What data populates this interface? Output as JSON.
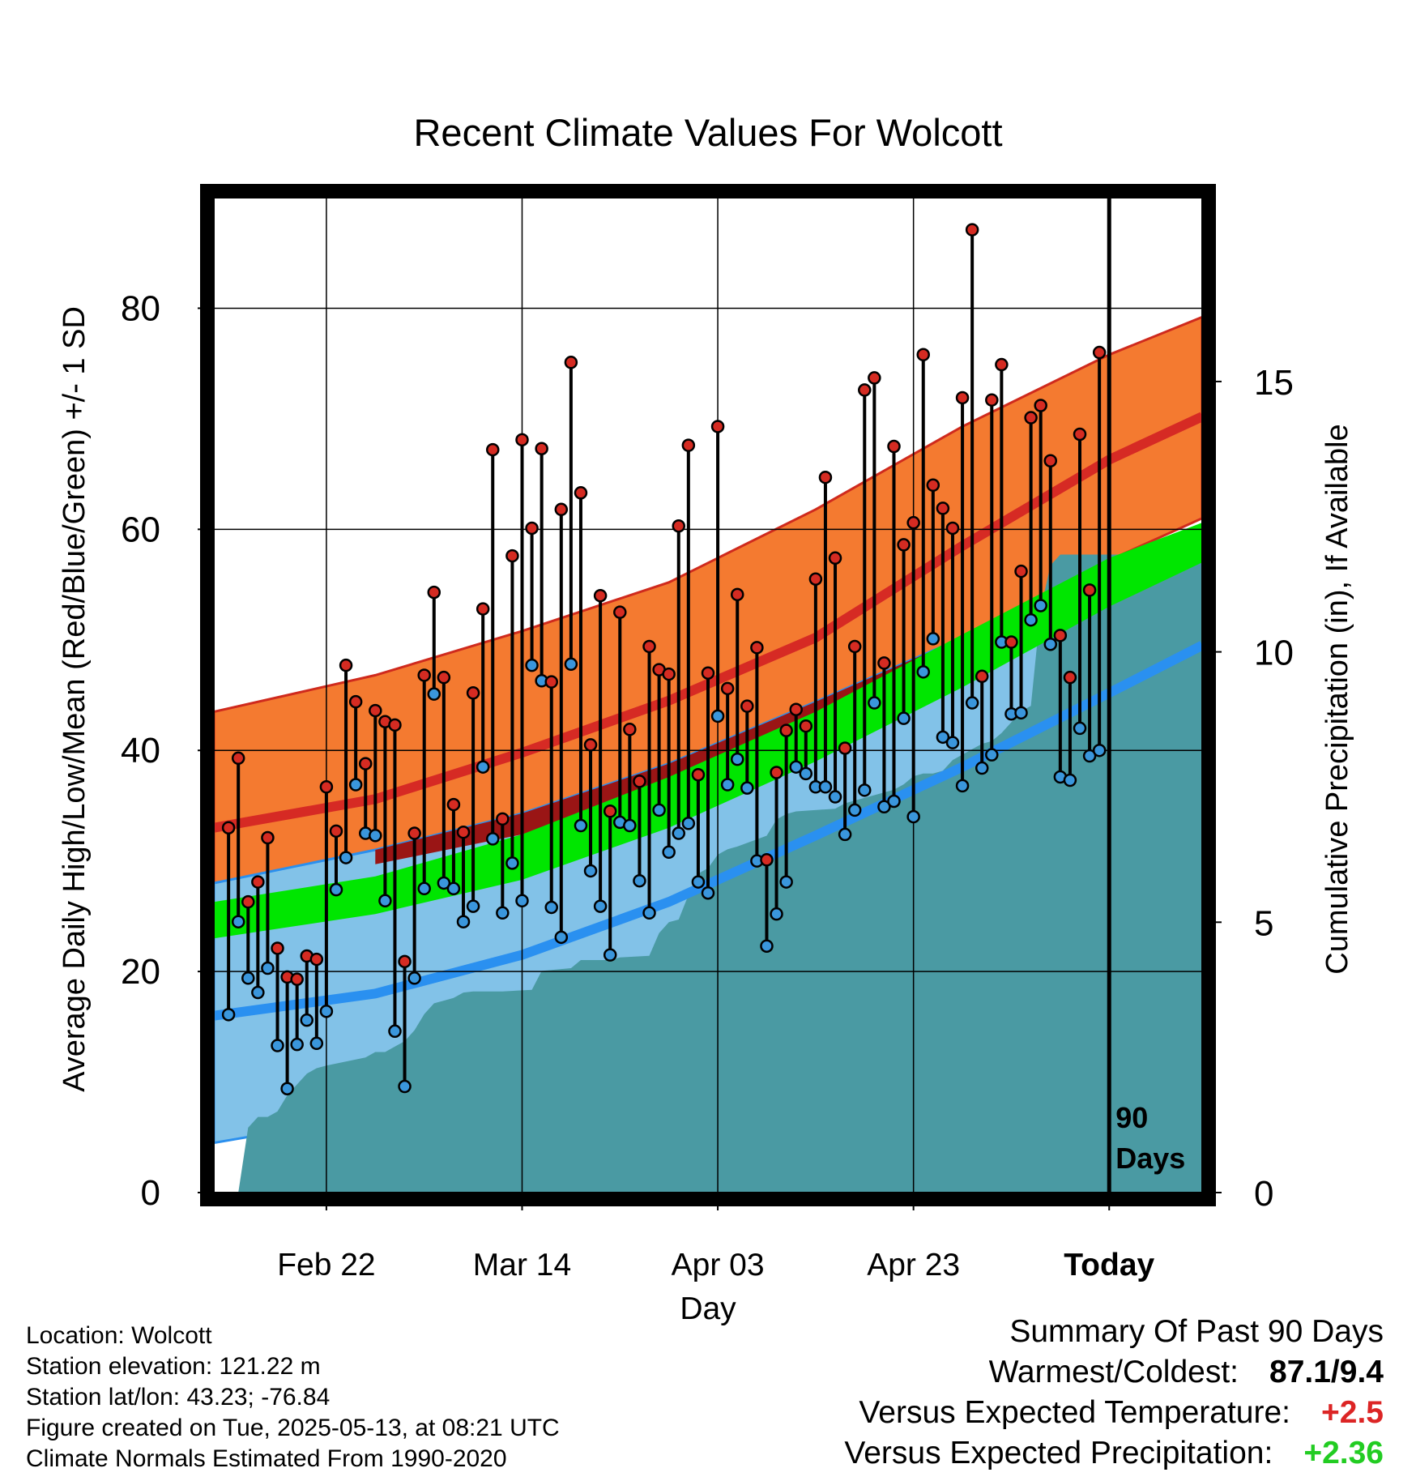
{
  "page": {
    "title": "Recent Climate Values For Wolcott",
    "footer_left": [
      "Location: Wolcott",
      "Station elevation: 121.22 m",
      "Station lat/lon: 43.23; -76.84",
      "Figure created on Tue, 2025-05-13, at 08:21 UTC",
      "Climate Normals Estimated From 1990-2020"
    ],
    "summary": {
      "heading": "Summary Of Past 90 Days",
      "warmest_label": "Warmest/Coldest:",
      "warmest_value": "87.1/9.4",
      "temp_label": "Versus Expected Temperature:",
      "temp_value": "+2.5",
      "precip_label": "Versus Expected Precipitation:",
      "precip_value": "+2.36"
    },
    "colors": {
      "high_band": "#f47a30",
      "high_mean": "#d62a24",
      "low_band": "#82c2e8",
      "low_mean": "#2a90f0",
      "mean_temp": "#00e600",
      "overlap_band": "#9a1515",
      "precip": "#4a9aa3",
      "temp_plus": "#dc2525",
      "precip_plus": "#22cc22"
    }
  },
  "chart_data": {
    "type": "line",
    "title": "Recent Climate Values For Wolcott",
    "xlabel": "Day",
    "ylabel": "Average Daily High/Low/Mean (Red/Blue/Green) +/- 1 SD",
    "y2label": "Cumulative Precipitation (in), If Available",
    "x_tick_labels": [
      "Feb 22",
      "Mar 14",
      "Apr 03",
      "Apr 23",
      "Today"
    ],
    "x_tick_days": [
      -80,
      -60,
      -40,
      -20,
      0
    ],
    "xlim": [
      -91.5,
      9.5
    ],
    "ylim": [
      0,
      90
    ],
    "y_ticks": [
      0,
      20,
      40,
      60,
      80
    ],
    "y2lim": [
      0,
      18.4
    ],
    "y2_ticks": [
      0,
      5,
      10,
      15
    ],
    "today_marker_label": [
      "90",
      "Days"
    ],
    "normals": {
      "days": [
        -91.5,
        -75,
        -60,
        -45,
        -30,
        -15,
        0,
        9.5
      ],
      "high_mean": [
        33,
        35.6,
        39.8,
        44.5,
        50.2,
        58.5,
        66.3,
        70.2
      ],
      "high_sd_upper": [
        43.5,
        46.8,
        50.8,
        55.2,
        61.8,
        69.3,
        75.8,
        79.2
      ],
      "high_sd_lower": [
        28,
        29.7,
        32.4,
        36,
        42.5,
        50,
        57.2,
        61
      ],
      "low_mean": [
        16,
        18,
        21.5,
        26.3,
        32.3,
        38.5,
        45.2,
        49.5
      ],
      "low_sd_upper": [
        28,
        31,
        34.3,
        38.8,
        44.4,
        50.2,
        53.4,
        56.8
      ],
      "low_sd_lower": [
        4.5,
        7,
        11,
        18.2,
        25,
        31.6,
        38.7,
        42
      ],
      "mean_temp": [
        24.6,
        27,
        30.5,
        35.5,
        41.5,
        48.5,
        55.7,
        59.8
      ],
      "mean_temp_lower": [
        23,
        25.2,
        28.3,
        33,
        39,
        45.7,
        53,
        57
      ],
      "mean_temp_upper": [
        26.3,
        28.6,
        32.4,
        37.6,
        43.5,
        50.5,
        57.4,
        60.6
      ]
    },
    "series": [
      {
        "name": "High",
        "days": [
          -90,
          -89,
          -88,
          -87,
          -86,
          -85,
          -84,
          -83,
          -82,
          -81,
          -80,
          -79,
          -78,
          -77,
          -76,
          -75,
          -74,
          -73,
          -72,
          -71,
          -70,
          -69,
          -68,
          -67,
          -66,
          -65,
          -64,
          -63,
          -62,
          -61,
          -60,
          -59,
          -58,
          -57,
          -56,
          -55,
          -54,
          -53,
          -52,
          -51,
          -50,
          -49,
          -48,
          -47,
          -46,
          -45,
          -44,
          -43,
          -42,
          -41,
          -40,
          -39,
          -38,
          -37,
          -36,
          -35,
          -34,
          -33,
          -32,
          -31,
          -30,
          -29,
          -28,
          -27,
          -26,
          -25,
          -24,
          -23,
          -22,
          -21,
          -20,
          -19,
          -18,
          -17,
          -16,
          -15,
          -14,
          -13,
          -12,
          -11,
          -10,
          -9,
          -8,
          -7,
          -6,
          -5,
          -4,
          -3,
          -2,
          -1
        ],
        "values": [
          33,
          39.3,
          26.3,
          28.1,
          32.1,
          22.1,
          19.5,
          19.3,
          21.4,
          21.1,
          36.7,
          32.7,
          47.7,
          44.4,
          38.8,
          43.6,
          42.6,
          42.3,
          20.9,
          32.5,
          46.8,
          54.3,
          46.6,
          35.1,
          32.6,
          45.2,
          52.8,
          67.2,
          33.8,
          57.6,
          68.1,
          60.1,
          67.3,
          46.2,
          61.8,
          75.1,
          63.3,
          40.5,
          54,
          34.5,
          52.5,
          41.9,
          37.2,
          49.4,
          47.3,
          46.9,
          60.3,
          67.6,
          37.8,
          47,
          69.3,
          45.6,
          54.1,
          44,
          49.3,
          30.1,
          38,
          41.8,
          43.7,
          42.2,
          55.5,
          64.7,
          57.4,
          40.2,
          49.4,
          72.6,
          73.7,
          47.9,
          67.5,
          58.6,
          60.6,
          75.8,
          64,
          61.9,
          60.1,
          71.9,
          87.1,
          46.7,
          71.7,
          74.9,
          49.8,
          56.2,
          70.1,
          71.2,
          66.2,
          50.4,
          46.6,
          68.6,
          54.5,
          76
        ]
      },
      {
        "name": "Low",
        "days": [
          -90,
          -89,
          -88,
          -87,
          -86,
          -85,
          -84,
          -83,
          -82,
          -81,
          -80,
          -79,
          -78,
          -77,
          -76,
          -75,
          -74,
          -73,
          -72,
          -71,
          -70,
          -69,
          -68,
          -67,
          -66,
          -65,
          -64,
          -63,
          -62,
          -61,
          -60,
          -59,
          -58,
          -57,
          -56,
          -55,
          -54,
          -53,
          -52,
          -51,
          -50,
          -49,
          -48,
          -47,
          -46,
          -45,
          -44,
          -43,
          -42,
          -41,
          -40,
          -39,
          -38,
          -37,
          -36,
          -35,
          -34,
          -33,
          -32,
          -31,
          -30,
          -29,
          -28,
          -27,
          -26,
          -25,
          -24,
          -23,
          -22,
          -21,
          -20,
          -19,
          -18,
          -17,
          -16,
          -15,
          -14,
          -13,
          -12,
          -11,
          -10,
          -9,
          -8,
          -7,
          -6,
          -5,
          -4,
          -3,
          -2,
          -1
        ],
        "values": [
          16.1,
          24.5,
          19.4,
          18.1,
          20.3,
          13.3,
          9.4,
          13.4,
          15.6,
          13.5,
          16.4,
          27.4,
          30.3,
          36.9,
          32.5,
          32.3,
          26.4,
          14.6,
          9.6,
          19.4,
          27.5,
          45.1,
          28,
          27.5,
          24.5,
          25.9,
          38.5,
          32,
          25.3,
          29.8,
          26.4,
          47.7,
          46.3,
          25.8,
          23.1,
          47.8,
          33.2,
          29.1,
          25.9,
          21.5,
          33.5,
          33.2,
          28.2,
          25.3,
          34.6,
          30.8,
          32.5,
          33.4,
          28.1,
          27.1,
          43.1,
          36.9,
          39.2,
          36.6,
          30,
          22.3,
          25.2,
          28.1,
          38.5,
          37.9,
          36.7,
          36.7,
          35.8,
          32.4,
          34.6,
          36.4,
          44.3,
          34.9,
          35.4,
          42.9,
          34,
          47.1,
          50.1,
          41.2,
          40.7,
          36.8,
          44.3,
          38.4,
          39.6,
          49.8,
          43.3,
          43.4,
          51.8,
          53.1,
          49.6,
          37.6,
          37.3,
          42,
          39.5,
          40
        ]
      }
    ],
    "precipitation": {
      "days": [
        -91.5,
        -89,
        -88,
        -87,
        -86,
        -85,
        -84,
        -83,
        -82,
        -81,
        -80,
        -76,
        -75,
        -74,
        -73,
        -72,
        -71,
        -70,
        -69,
        -68,
        -67,
        -66,
        -65,
        -64,
        -62,
        -59,
        -58,
        -55,
        -54,
        -51,
        -50,
        -47,
        -46,
        -45,
        -44,
        -43,
        -42,
        -41,
        -40,
        -39,
        -38,
        -35,
        -34,
        -33,
        -32,
        -28,
        -27,
        -26,
        -25,
        -24,
        -23,
        -22,
        -21,
        -20,
        -19,
        -18,
        -17,
        -16,
        -15,
        -14,
        -13,
        -12,
        -11,
        -10,
        -9,
        -8,
        -7,
        -6,
        -5,
        -4,
        -3,
        -2,
        -1,
        0,
        9.5
      ],
      "values": [
        0,
        0,
        1.2,
        1.4,
        1.4,
        1.5,
        1.8,
        2,
        2.2,
        2.3,
        2.35,
        2.5,
        2.6,
        2.6,
        2.7,
        2.8,
        3,
        3.3,
        3.5,
        3.55,
        3.6,
        3.7,
        3.72,
        3.72,
        3.72,
        3.75,
        4.1,
        4.15,
        4.3,
        4.3,
        4.35,
        4.38,
        4.8,
        5,
        5.05,
        5.5,
        5.9,
        6,
        6.25,
        6.35,
        6.4,
        6.6,
        6.9,
        7,
        7.05,
        7.1,
        7.2,
        7.25,
        7.3,
        7.35,
        7.4,
        7.45,
        7.55,
        7.7,
        7.75,
        7.75,
        7.8,
        8,
        8.1,
        8.2,
        8.3,
        8.35,
        8.5,
        8.7,
        8.9,
        9,
        10.8,
        11.6,
        11.8,
        11.8,
        11.8,
        11.8,
        11.8,
        11.8,
        11.8
      ]
    }
  }
}
